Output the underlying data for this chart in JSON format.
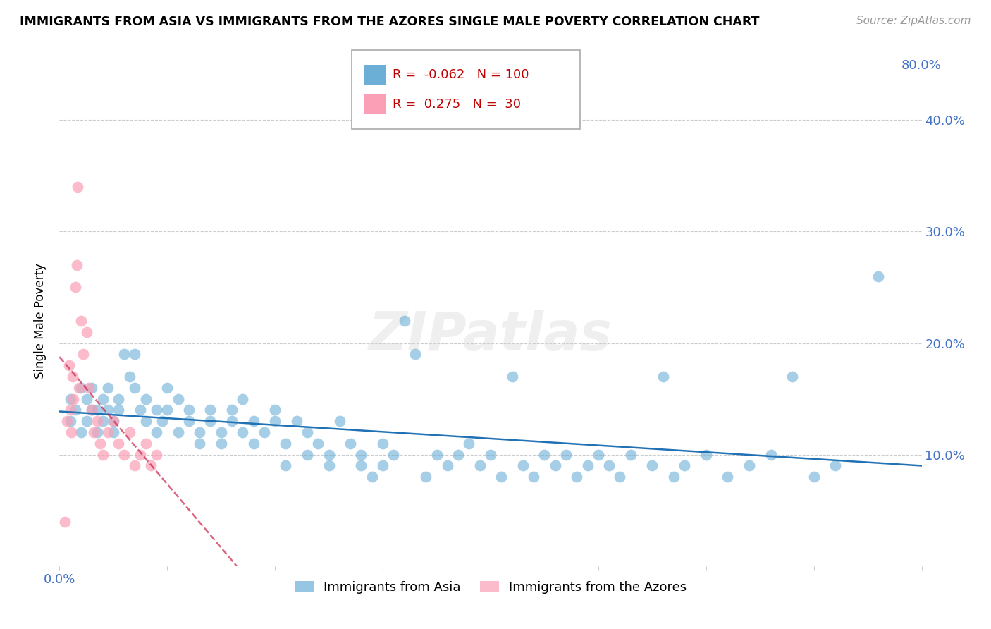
{
  "title": "IMMIGRANTS FROM ASIA VS IMMIGRANTS FROM THE AZORES SINGLE MALE POVERTY CORRELATION CHART",
  "source": "Source: ZipAtlas.com",
  "ylabel": "Single Male Poverty",
  "legend_label_1": "Immigrants from Asia",
  "legend_label_2": "Immigrants from the Azores",
  "r1": -0.062,
  "n1": 100,
  "r2": 0.275,
  "n2": 30,
  "color1": "#6baed6",
  "color2": "#fa9fb5",
  "trendline1_color": "#2171b5",
  "trendline2_color": "#c9244b",
  "xlim": [
    0.0,
    0.8
  ],
  "ylim": [
    0.0,
    0.44
  ],
  "watermark": "ZIPatlas",
  "asia_x": [
    0.01,
    0.01,
    0.015,
    0.02,
    0.02,
    0.025,
    0.025,
    0.03,
    0.03,
    0.035,
    0.035,
    0.04,
    0.04,
    0.045,
    0.045,
    0.05,
    0.05,
    0.055,
    0.055,
    0.06,
    0.065,
    0.07,
    0.07,
    0.075,
    0.08,
    0.08,
    0.09,
    0.09,
    0.095,
    0.1,
    0.1,
    0.11,
    0.11,
    0.12,
    0.12,
    0.13,
    0.13,
    0.14,
    0.14,
    0.15,
    0.15,
    0.16,
    0.16,
    0.17,
    0.17,
    0.18,
    0.18,
    0.19,
    0.2,
    0.2,
    0.21,
    0.21,
    0.22,
    0.23,
    0.23,
    0.24,
    0.25,
    0.25,
    0.26,
    0.27,
    0.28,
    0.28,
    0.29,
    0.3,
    0.3,
    0.31,
    0.32,
    0.33,
    0.34,
    0.35,
    0.36,
    0.37,
    0.38,
    0.39,
    0.4,
    0.41,
    0.42,
    0.43,
    0.44,
    0.45,
    0.46,
    0.47,
    0.48,
    0.49,
    0.5,
    0.51,
    0.52,
    0.53,
    0.55,
    0.56,
    0.57,
    0.58,
    0.6,
    0.62,
    0.64,
    0.66,
    0.68,
    0.7,
    0.72,
    0.76
  ],
  "asia_y": [
    0.13,
    0.15,
    0.14,
    0.16,
    0.12,
    0.13,
    0.15,
    0.14,
    0.16,
    0.12,
    0.14,
    0.13,
    0.15,
    0.14,
    0.16,
    0.12,
    0.13,
    0.14,
    0.15,
    0.19,
    0.17,
    0.16,
    0.19,
    0.14,
    0.13,
    0.15,
    0.12,
    0.14,
    0.13,
    0.14,
    0.16,
    0.12,
    0.15,
    0.13,
    0.14,
    0.11,
    0.12,
    0.13,
    0.14,
    0.12,
    0.11,
    0.13,
    0.14,
    0.12,
    0.15,
    0.13,
    0.11,
    0.12,
    0.14,
    0.13,
    0.09,
    0.11,
    0.13,
    0.1,
    0.12,
    0.11,
    0.09,
    0.1,
    0.13,
    0.11,
    0.09,
    0.1,
    0.08,
    0.09,
    0.11,
    0.1,
    0.22,
    0.19,
    0.08,
    0.1,
    0.09,
    0.1,
    0.11,
    0.09,
    0.1,
    0.08,
    0.17,
    0.09,
    0.08,
    0.1,
    0.09,
    0.1,
    0.08,
    0.09,
    0.1,
    0.09,
    0.08,
    0.1,
    0.09,
    0.17,
    0.08,
    0.09,
    0.1,
    0.08,
    0.09,
    0.1,
    0.17,
    0.08,
    0.09,
    0.26
  ],
  "azores_x": [
    0.005,
    0.007,
    0.009,
    0.01,
    0.011,
    0.012,
    0.013,
    0.015,
    0.016,
    0.017,
    0.018,
    0.02,
    0.022,
    0.025,
    0.027,
    0.03,
    0.032,
    0.035,
    0.038,
    0.04,
    0.045,
    0.05,
    0.055,
    0.06,
    0.065,
    0.07,
    0.075,
    0.08,
    0.085,
    0.09
  ],
  "azores_y": [
    0.04,
    0.13,
    0.18,
    0.14,
    0.12,
    0.17,
    0.15,
    0.25,
    0.27,
    0.34,
    0.16,
    0.22,
    0.19,
    0.21,
    0.16,
    0.14,
    0.12,
    0.13,
    0.11,
    0.1,
    0.12,
    0.13,
    0.11,
    0.1,
    0.12,
    0.09,
    0.1,
    0.11,
    0.09,
    0.1
  ]
}
